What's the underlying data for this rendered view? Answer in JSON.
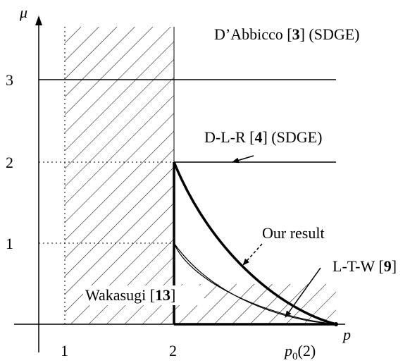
{
  "axes": {
    "y_label": "μ",
    "x_label": "p",
    "x_ticks": [
      "1",
      "2"
    ],
    "x_tick_p0": {
      "base": "p",
      "subscript": "0",
      "arg": "(2)"
    },
    "y_ticks": [
      "1",
      "2",
      "3"
    ]
  },
  "annotations": {
    "dabbicco": {
      "pre": "D’Abbicco [",
      "ref": "3",
      "post": "] (SDGE)"
    },
    "dlr": {
      "pre": "D-L-R [",
      "ref": "4",
      "post": "] (SDGE)"
    },
    "our_result": {
      "text": "Our result"
    },
    "ltw": {
      "pre": "L-T-W [",
      "ref": "9",
      "post": "]"
    },
    "wakasugi": {
      "pre": "Wakasugi [",
      "ref": "13",
      "post": "]"
    }
  },
  "colors": {
    "ink": "#000000",
    "background": "#ffffff"
  }
}
